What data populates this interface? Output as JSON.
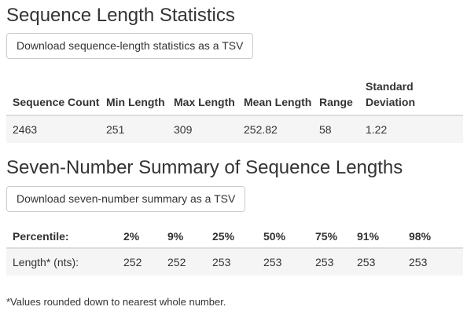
{
  "stats": {
    "title": "Sequence Length Statistics",
    "download_label": "Download sequence-length statistics as a TSV",
    "headers": [
      "Sequence Count",
      "Min Length",
      "Max Length",
      "Mean Length",
      "Range",
      "Standard Deviation"
    ],
    "row": [
      "2463",
      "251",
      "309",
      "252.82",
      "58",
      "1.22"
    ]
  },
  "summary": {
    "title": "Seven-Number Summary of Sequence Lengths",
    "download_label": "Download seven-number summary as a TSV",
    "headers": [
      "Percentile:",
      "2%",
      "9%",
      "25%",
      "50%",
      "75%",
      "91%",
      "98%"
    ],
    "row": [
      "Length* (nts):",
      "252",
      "252",
      "253",
      "253",
      "253",
      "253",
      "253"
    ]
  },
  "footnote": "*Values rounded down to nearest whole number."
}
